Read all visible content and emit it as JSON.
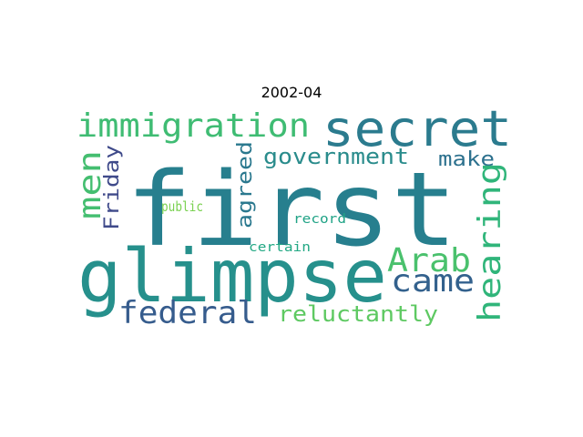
{
  "title": "2002-04",
  "words": [
    {
      "text": "first",
      "color": "#277f8e"
    },
    {
      "text": "glimpse",
      "color": "#26908c"
    },
    {
      "text": "secret",
      "color": "#2b7b8e"
    },
    {
      "text": "immigration",
      "color": "#3fbc73"
    },
    {
      "text": "federal",
      "color": "#365c8d"
    },
    {
      "text": "hearing",
      "color": "#30b57a"
    },
    {
      "text": "Arab",
      "color": "#4ac16d"
    },
    {
      "text": "came",
      "color": "#33618d"
    },
    {
      "text": "men",
      "color": "#44be70"
    },
    {
      "text": "government",
      "color": "#2a8c8c"
    },
    {
      "text": "reluctantly",
      "color": "#5ec962"
    },
    {
      "text": "make",
      "color": "#2d718e"
    },
    {
      "text": "agreed",
      "color": "#2a788e"
    },
    {
      "text": "Friday",
      "color": "#3f4a8a"
    },
    {
      "text": "public",
      "color": "#7ad151"
    },
    {
      "text": "record",
      "color": "#20a386"
    },
    {
      "text": "certain",
      "color": "#22a884"
    }
  ]
}
